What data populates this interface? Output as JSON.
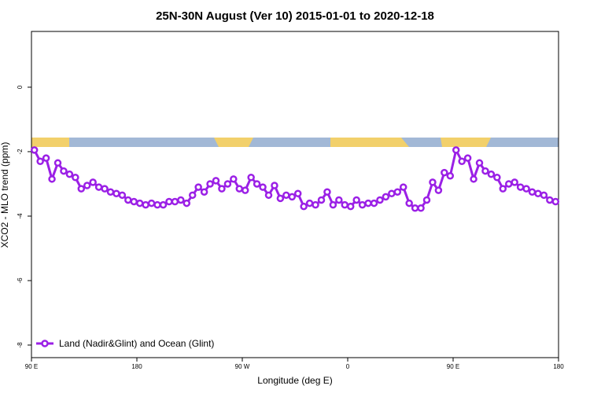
{
  "chart_data": {
    "type": "line",
    "title": "25N-30N August (Ver 10)   2015-01-01 to 2020-12-18",
    "x_label": "Longitude (deg E)",
    "y_label": "XCO2 - MLO trend (ppm)",
    "x": [
      92.5,
      97.5,
      102.5,
      107.5,
      112.5,
      117.5,
      122.5,
      127.5,
      132.5,
      137.5,
      142.5,
      147.5,
      152.5,
      157.5,
      162.5,
      167.5,
      172.5,
      177.5,
      182.5,
      187.5,
      192.5,
      197.5,
      202.5,
      207.5,
      212.5,
      217.5,
      222.5,
      227.5,
      232.5,
      237.5,
      242.5,
      247.5,
      252.5,
      257.5,
      262.5,
      267.5,
      272.5,
      277.5,
      282.5,
      287.5,
      292.5,
      297.5,
      302.5,
      307.5,
      312.5,
      317.5,
      322.5,
      327.5,
      332.5,
      337.5,
      342.5,
      347.5,
      352.5,
      357.5,
      362.5,
      367.5,
      372.5,
      377.5,
      382.5,
      387.5,
      392.5,
      397.5,
      402.5,
      407.5,
      412.5,
      417.5,
      422.5,
      427.5,
      432.5,
      437.5,
      442.5,
      447.5,
      452.5,
      457.5,
      462.5,
      467.5,
      472.5,
      477.5,
      482.5,
      487.5,
      492.5,
      497.5,
      502.5,
      507.5,
      512.5,
      517.5,
      522.5,
      527.5,
      532.5,
      537.5
    ],
    "series": [
      {
        "name": "Land (Nadir&Glint) and Ocean (Glint)",
        "color": "#9b20e6",
        "values": [
          -1.95,
          -2.3,
          -2.2,
          -2.85,
          -2.35,
          -2.6,
          -2.7,
          -2.8,
          -3.15,
          -3.05,
          -2.95,
          -3.1,
          -3.15,
          -3.25,
          -3.3,
          -3.35,
          -3.5,
          -3.55,
          -3.6,
          -3.65,
          -3.6,
          -3.65,
          -3.65,
          -3.55,
          -3.55,
          -3.5,
          -3.6,
          -3.35,
          -3.1,
          -3.25,
          -3.0,
          -2.9,
          -3.15,
          -3.0,
          -2.85,
          -3.15,
          -3.2,
          -2.8,
          -3.0,
          -3.1,
          -3.35,
          -3.05,
          -3.45,
          -3.35,
          -3.4,
          -3.3,
          -3.7,
          -3.6,
          -3.65,
          -3.5,
          -3.25,
          -3.65,
          -3.5,
          -3.65,
          -3.7,
          -3.5,
          -3.65,
          -3.6,
          -3.6,
          -3.5,
          -3.4,
          -3.3,
          -3.25,
          -3.1,
          -3.6,
          -3.75,
          -3.75,
          -3.5,
          -2.95,
          -3.2,
          -2.65,
          -2.75,
          -1.95,
          -2.3,
          -2.2,
          -2.85,
          -2.35,
          -2.6,
          -2.7,
          -2.8,
          -3.15,
          -3.0,
          -2.95,
          -3.1,
          -3.15,
          -3.25,
          -3.3,
          -3.35,
          -3.5,
          -3.55
        ]
      }
    ],
    "xlim": [
      90,
      540
    ],
    "xticks": [
      {
        "value": 90,
        "label": "90 E"
      },
      180,
      {
        "value": 270,
        "label": "90 W"
      },
      {
        "value": 360,
        "label": "0"
      },
      {
        "value": 450,
        "label": "90 E"
      },
      {
        "value": 540,
        "label": "180"
      }
    ],
    "ylim": [
      -8.39,
      1.73
    ],
    "yticks": [
      0,
      -2,
      -4,
      -6,
      -8
    ],
    "legend": "bottom-left"
  }
}
